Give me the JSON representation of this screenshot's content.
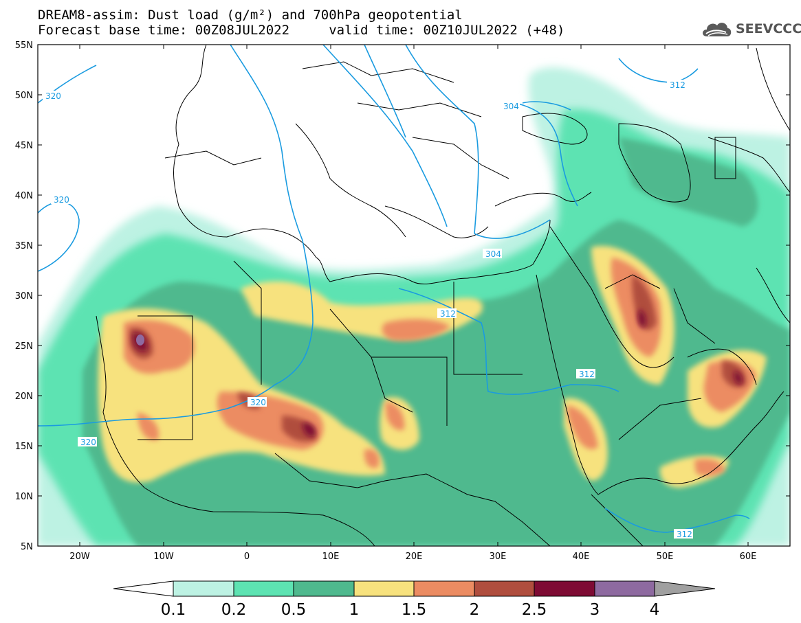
{
  "header": {
    "title_line1": "DREAM8-assim: Dust load (g/m²) and 700hPa geopotential",
    "title_line2": "Forecast base time: 00Z08JUL2022     valid time: 00Z10JUL2022 (+48)",
    "logo_text": "SEEVCCC",
    "logo_icon": "cloud-icon"
  },
  "axes": {
    "lat_labels": [
      "55N",
      "50N",
      "45N",
      "40N",
      "35N",
      "30N",
      "25N",
      "20N",
      "15N",
      "10N",
      "5N"
    ],
    "lon_labels": [
      "20W",
      "10W",
      "0",
      "10E",
      "20E",
      "30E",
      "40E",
      "50E",
      "60E"
    ]
  },
  "contour_labels": [
    "320",
    "320",
    "304",
    "312",
    "304",
    "312",
    "312",
    "320",
    "320",
    "312"
  ],
  "colorbar": {
    "levels": [
      "0.1",
      "0.2",
      "0.5",
      "1",
      "1.5",
      "2",
      "2.5",
      "3",
      "4"
    ],
    "colors": [
      "#bdf2e3",
      "#5de3b2",
      "#4fb98e",
      "#f7e27e",
      "#ec8c62",
      "#b04e3e",
      "#7e0b34",
      "#8e6aa0"
    ],
    "low_extend_color": "#ffffff",
    "high_extend_color": "#a0a0a0"
  },
  "colors": {
    "contour": "#1a9be0",
    "border": "#000000"
  }
}
